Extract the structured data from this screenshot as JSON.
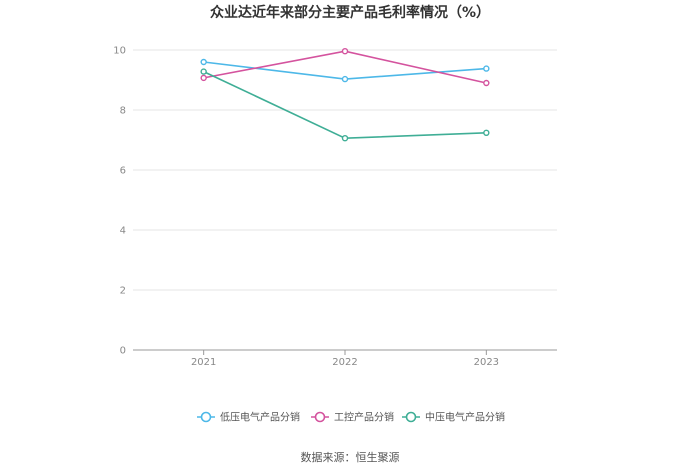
{
  "chart_data": {
    "type": "line",
    "title": "众业达近年来部分主要产品毛利率情况（%）",
    "categories": [
      "2021",
      "2022",
      "2023"
    ],
    "series": [
      {
        "name": "低压电气产品分销",
        "color": "#4db8e8",
        "values": [
          9.6,
          9.03,
          9.38
        ]
      },
      {
        "name": "工控产品分销",
        "color": "#d4539e",
        "values": [
          9.07,
          9.96,
          8.9
        ]
      },
      {
        "name": "中压电气产品分销",
        "color": "#3fae96",
        "values": [
          9.28,
          7.06,
          7.24
        ]
      }
    ],
    "ylim": [
      0,
      10
    ],
    "yticks": [
      0,
      2,
      4,
      6,
      8,
      10
    ],
    "grid": true,
    "legend": "bottom",
    "source": "数据来源：恒生聚源"
  }
}
